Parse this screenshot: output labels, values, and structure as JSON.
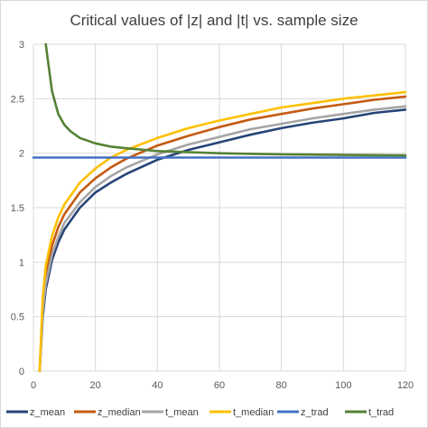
{
  "chart_data": {
    "type": "line",
    "title": "Critical values of |z| and |t| vs. sample size",
    "xlabel": "",
    "ylabel": "",
    "xlim": [
      0,
      120
    ],
    "ylim": [
      0,
      3
    ],
    "x_ticks": [
      0,
      20,
      40,
      60,
      80,
      100,
      120
    ],
    "y_ticks": [
      0,
      0.5,
      1,
      1.5,
      2,
      2.5,
      3
    ],
    "grid": true,
    "legend_position": "bottom",
    "series": [
      {
        "name": "z_mean",
        "color": "#264478",
        "points": [
          [
            2,
            0
          ],
          [
            3,
            0.5
          ],
          [
            4,
            0.75
          ],
          [
            6,
            1.02
          ],
          [
            8,
            1.18
          ],
          [
            10,
            1.3
          ],
          [
            15,
            1.5
          ],
          [
            20,
            1.64
          ],
          [
            25,
            1.73
          ],
          [
            30,
            1.81
          ],
          [
            40,
            1.94
          ],
          [
            50,
            2.03
          ],
          [
            60,
            2.1
          ],
          [
            70,
            2.17
          ],
          [
            80,
            2.23
          ],
          [
            90,
            2.28
          ],
          [
            100,
            2.32
          ],
          [
            110,
            2.37
          ],
          [
            120,
            2.4
          ]
        ]
      },
      {
        "name": "z_median",
        "color": "#C55A11",
        "points": [
          [
            2,
            0
          ],
          [
            3,
            0.6
          ],
          [
            4,
            0.88
          ],
          [
            6,
            1.15
          ],
          [
            8,
            1.32
          ],
          [
            10,
            1.44
          ],
          [
            15,
            1.64
          ],
          [
            20,
            1.77
          ],
          [
            25,
            1.87
          ],
          [
            30,
            1.95
          ],
          [
            40,
            2.07
          ],
          [
            50,
            2.16
          ],
          [
            60,
            2.24
          ],
          [
            70,
            2.31
          ],
          [
            80,
            2.36
          ],
          [
            90,
            2.41
          ],
          [
            100,
            2.45
          ],
          [
            110,
            2.49
          ],
          [
            120,
            2.52
          ]
        ]
      },
      {
        "name": "t_mean",
        "color": "#A5A5A5",
        "points": [
          [
            2,
            0
          ],
          [
            3,
            0.55
          ],
          [
            4,
            0.8
          ],
          [
            6,
            1.07
          ],
          [
            8,
            1.23
          ],
          [
            10,
            1.36
          ],
          [
            15,
            1.55
          ],
          [
            20,
            1.69
          ],
          [
            25,
            1.79
          ],
          [
            30,
            1.87
          ],
          [
            40,
            1.99
          ],
          [
            50,
            2.08
          ],
          [
            60,
            2.15
          ],
          [
            70,
            2.22
          ],
          [
            80,
            2.27
          ],
          [
            90,
            2.32
          ],
          [
            100,
            2.36
          ],
          [
            110,
            2.4
          ],
          [
            120,
            2.43
          ]
        ]
      },
      {
        "name": "t_median",
        "color": "#FFC000",
        "points": [
          [
            2,
            0
          ],
          [
            3,
            0.68
          ],
          [
            4,
            0.97
          ],
          [
            6,
            1.24
          ],
          [
            8,
            1.41
          ],
          [
            10,
            1.53
          ],
          [
            15,
            1.73
          ],
          [
            20,
            1.86
          ],
          [
            25,
            1.96
          ],
          [
            30,
            2.03
          ],
          [
            40,
            2.14
          ],
          [
            50,
            2.23
          ],
          [
            60,
            2.3
          ],
          [
            70,
            2.36
          ],
          [
            80,
            2.42
          ],
          [
            90,
            2.46
          ],
          [
            100,
            2.5
          ],
          [
            110,
            2.53
          ],
          [
            120,
            2.56
          ]
        ]
      },
      {
        "name": "z_trad",
        "color": "#4472C4",
        "points": [
          [
            0,
            1.96
          ],
          [
            120,
            1.96
          ]
        ]
      },
      {
        "name": "t_trad",
        "color": "#548235",
        "points": [
          [
            4,
            3.0
          ],
          [
            5,
            2.78
          ],
          [
            6,
            2.57
          ],
          [
            8,
            2.36
          ],
          [
            10,
            2.26
          ],
          [
            12,
            2.2
          ],
          [
            15,
            2.14
          ],
          [
            20,
            2.09
          ],
          [
            25,
            2.06
          ],
          [
            30,
            2.045
          ],
          [
            40,
            2.02
          ],
          [
            50,
            2.01
          ],
          [
            60,
            2.0
          ],
          [
            80,
            1.99
          ],
          [
            100,
            1.984
          ],
          [
            120,
            1.98
          ]
        ]
      }
    ]
  }
}
